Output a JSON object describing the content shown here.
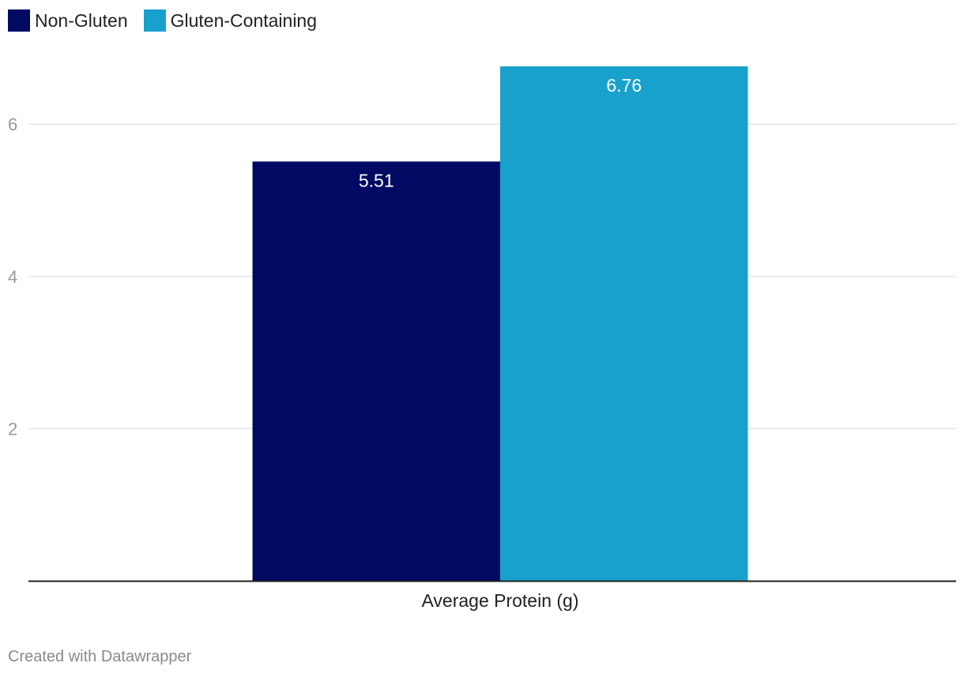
{
  "chart_data": {
    "type": "bar",
    "categories": [
      "Average Protein (g)"
    ],
    "series": [
      {
        "name": "Non-Gluten",
        "color": "#000a62",
        "values": [
          5.51
        ],
        "value_labels": [
          "5.51"
        ]
      },
      {
        "name": "Gluten-Containing",
        "color": "#18a1cd",
        "values": [
          6.76
        ],
        "value_labels": [
          "6.76"
        ]
      }
    ],
    "y_ticks": [
      2,
      4,
      6
    ],
    "y_tick_labels": [
      "2",
      "4",
      "6"
    ],
    "ylim": [
      0,
      6.76
    ],
    "grid": true,
    "legend_position": "top-left"
  },
  "credit": "Created with Datawrapper"
}
